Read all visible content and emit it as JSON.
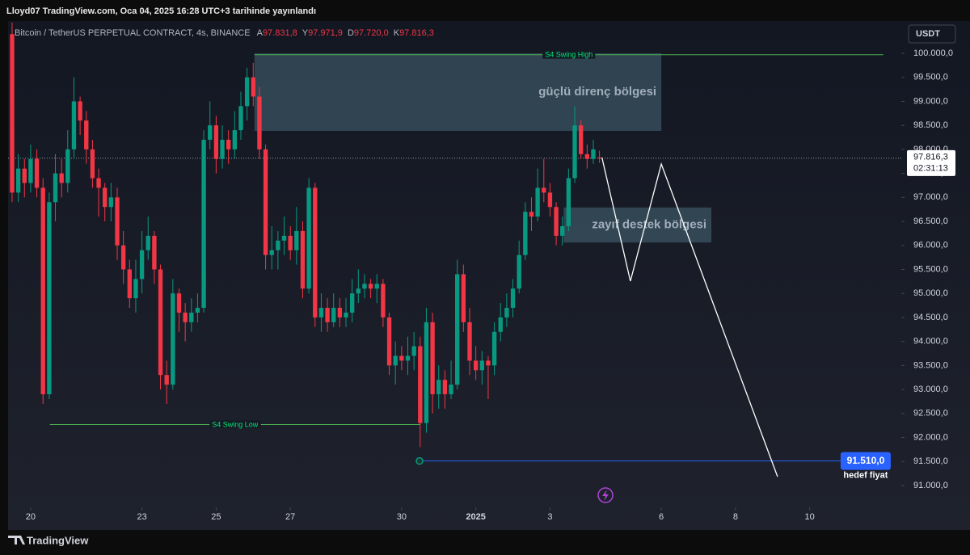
{
  "header": {
    "title": "Lloyd07 TradingView.com, Oca 04, 2025 16:28 UTC+3 tarihinde yayınlandı"
  },
  "chart_data": {
    "type": "candlestick",
    "symbol": "Bitcoin / TetherUS PERPETUAL CONTRACT, 4s, BINANCE",
    "ohlc_legend": [
      {
        "key": "A",
        "label": "97.831,8"
      },
      {
        "key": "Y",
        "label": "97.971,9"
      },
      {
        "key": "D",
        "label": "97.720,0"
      },
      {
        "key": "K",
        "label": "97.816,3"
      }
    ],
    "currency": "USDT",
    "up_color": "#089981",
    "down_color": "#f23645",
    "candles": [
      [
        100400,
        100700,
        96900,
        97100
      ],
      [
        97100,
        97900,
        96900,
        97600
      ],
      [
        97600,
        97800,
        97000,
        97300
      ],
      [
        97300,
        98100,
        97100,
        97800
      ],
      [
        97800,
        98000,
        97000,
        97200
      ],
      [
        97200,
        97400,
        92700,
        92900
      ],
      [
        92900,
        97100,
        92800,
        96900
      ],
      [
        96900,
        97900,
        96500,
        97500
      ],
      [
        97500,
        97800,
        97000,
        97300
      ],
      [
        97300,
        98400,
        97100,
        98000
      ],
      [
        98000,
        99500,
        97800,
        99000
      ],
      [
        99000,
        99100,
        98300,
        98600
      ],
      [
        98600,
        98800,
        97700,
        98000
      ],
      [
        98000,
        98200,
        97200,
        97400
      ],
      [
        97400,
        97600,
        96600,
        97200
      ],
      [
        97200,
        97300,
        96500,
        96800
      ],
      [
        96800,
        97300,
        96500,
        97000
      ],
      [
        97000,
        97200,
        95700,
        96000
      ],
      [
        96000,
        96300,
        95200,
        95500
      ],
      [
        95500,
        95700,
        94700,
        94900
      ],
      [
        94900,
        95700,
        94600,
        95300
      ],
      [
        95300,
        96300,
        95000,
        95900
      ],
      [
        95900,
        96600,
        95700,
        96200
      ],
      [
        96200,
        96300,
        95200,
        95500
      ],
      [
        95500,
        95600,
        93000,
        93300
      ],
      [
        93300,
        93600,
        92700,
        93100
      ],
      [
        93100,
        95300,
        93000,
        95000
      ],
      [
        95000,
        95100,
        94200,
        94600
      ],
      [
        94600,
        94800,
        94000,
        94400
      ],
      [
        94400,
        94900,
        94200,
        94600
      ],
      [
        94600,
        95000,
        94400,
        94700
      ],
      [
        94700,
        98400,
        94600,
        98200
      ],
      [
        98200,
        99000,
        98000,
        98500
      ],
      [
        98500,
        98700,
        97500,
        97800
      ],
      [
        97800,
        98500,
        97600,
        98200
      ],
      [
        98200,
        98400,
        97700,
        98000
      ],
      [
        98000,
        98800,
        97800,
        98400
      ],
      [
        98400,
        99200,
        98200,
        98900
      ],
      [
        98900,
        99700,
        98600,
        99500
      ],
      [
        99500,
        99800,
        98900,
        99100
      ],
      [
        99100,
        99300,
        97800,
        98000
      ],
      [
        98000,
        98100,
        95500,
        95800
      ],
      [
        95800,
        96400,
        95500,
        95900
      ],
      [
        95900,
        96300,
        95500,
        96100
      ],
      [
        96100,
        96600,
        95800,
        96200
      ],
      [
        96200,
        96400,
        95700,
        95900
      ],
      [
        95900,
        96800,
        95600,
        96300
      ],
      [
        96300,
        96500,
        94900,
        95100
      ],
      [
        95100,
        97400,
        95000,
        97200
      ],
      [
        97200,
        97300,
        94300,
        94500
      ],
      [
        94500,
        95000,
        94200,
        94700
      ],
      [
        94700,
        94900,
        94200,
        94400
      ],
      [
        94400,
        95000,
        94300,
        94700
      ],
      [
        94700,
        94900,
        94300,
        94500
      ],
      [
        94500,
        94900,
        94300,
        94600
      ],
      [
        94600,
        95300,
        94400,
        95000
      ],
      [
        95000,
        95500,
        94800,
        95100
      ],
      [
        95100,
        95400,
        94900,
        95200
      ],
      [
        95200,
        95300,
        94900,
        95100
      ],
      [
        95100,
        95400,
        94800,
        95200
      ],
      [
        95200,
        95300,
        94300,
        94500
      ],
      [
        94500,
        94600,
        93300,
        93500
      ],
      [
        93500,
        94000,
        93100,
        93700
      ],
      [
        93700,
        93900,
        93400,
        93600
      ],
      [
        93600,
        94100,
        93300,
        93700
      ],
      [
        93700,
        94200,
        93400,
        93900
      ],
      [
        93900,
        94100,
        91800,
        92300
      ],
      [
        92300,
        94700,
        92100,
        94400
      ],
      [
        94400,
        94600,
        92500,
        92900
      ],
      [
        92900,
        93500,
        92600,
        93200
      ],
      [
        93200,
        93400,
        92600,
        92900
      ],
      [
        92900,
        93600,
        92800,
        93100
      ],
      [
        93100,
        95700,
        93000,
        95400
      ],
      [
        95400,
        95600,
        94200,
        94400
      ],
      [
        94400,
        94700,
        93300,
        93600
      ],
      [
        93600,
        93900,
        93200,
        93400
      ],
      [
        93400,
        93800,
        93100,
        93600
      ],
      [
        93600,
        93700,
        92800,
        93500
      ],
      [
        93500,
        94400,
        93300,
        94200
      ],
      [
        94200,
        94800,
        94000,
        94500
      ],
      [
        94500,
        95000,
        94300,
        94700
      ],
      [
        94700,
        95300,
        94500,
        95100
      ],
      [
        95100,
        96100,
        95000,
        95800
      ],
      [
        95800,
        96900,
        95700,
        96700
      ],
      [
        96700,
        97000,
        96300,
        96600
      ],
      [
        96600,
        97600,
        96500,
        97200
      ],
      [
        97200,
        97800,
        96900,
        97100
      ],
      [
        97100,
        97300,
        96600,
        96800
      ],
      [
        96800,
        96900,
        96000,
        96200
      ],
      [
        96200,
        96600,
        96000,
        96400
      ],
      [
        96400,
        97600,
        96300,
        97400
      ],
      [
        97400,
        98900,
        97300,
        98500
      ],
      [
        98500,
        98600,
        97800,
        97900
      ],
      [
        97900,
        98100,
        97600,
        97800
      ],
      [
        97800,
        98200,
        97700,
        98000
      ],
      [
        97831.8,
        97971.9,
        97720,
        97816.3
      ]
    ],
    "xlim": [
      -0.65,
      141.2
    ],
    "xticks": [
      {
        "value": 3,
        "label": "20"
      },
      {
        "value": 21,
        "label": "23"
      },
      {
        "value": 33,
        "label": "25"
      },
      {
        "value": 45,
        "label": "27"
      },
      {
        "value": 63,
        "label": "30"
      },
      {
        "value": 75,
        "label": "2025"
      },
      {
        "value": 87,
        "label": "3"
      },
      {
        "value": 105,
        "label": "6"
      },
      {
        "value": 117,
        "label": "8"
      },
      {
        "value": 129,
        "label": "10"
      }
    ],
    "ylim": [
      90545,
      100606
    ],
    "yticks": [
      {
        "value": 100000,
        "label": "100.000,0"
      },
      {
        "value": 99500,
        "label": "99.500,0"
      },
      {
        "value": 99000,
        "label": "99.000,0"
      },
      {
        "value": 98500,
        "label": "98.500,0"
      },
      {
        "value": 98000,
        "label": "98.000,0"
      },
      {
        "value": 97500,
        "label": "97.500,0"
      },
      {
        "value": 97000,
        "label": "97.000,0"
      },
      {
        "value": 96500,
        "label": "96.500,0"
      },
      {
        "value": 96000,
        "label": "96.000,0"
      },
      {
        "value": 95500,
        "label": "95.500,0"
      },
      {
        "value": 95000,
        "label": "95.000,0"
      },
      {
        "value": 94500,
        "label": "94.500,0"
      },
      {
        "value": 94000,
        "label": "94.000,0"
      },
      {
        "value": 93500,
        "label": "93.500,0"
      },
      {
        "value": 93000,
        "label": "93.000,0"
      },
      {
        "value": 92500,
        "label": "92.500,0"
      },
      {
        "value": 92000,
        "label": "92.000,0"
      },
      {
        "value": 91500,
        "label": "91.500,0"
      },
      {
        "value": 91000,
        "label": "91.000,0"
      }
    ],
    "last_price": {
      "value": 97816.3,
      "label": "97.816,3",
      "countdown": "02:31:13"
    },
    "lines": [
      {
        "name": "S4 Swing High",
        "value": 99970,
        "x": [
          39.2,
          140.9
        ],
        "color": "#4caf50"
      },
      {
        "name": "S4 Swing Low",
        "value": 92270,
        "x": [
          6.1,
          66
        ],
        "color": "#4caf50"
      }
    ],
    "target": {
      "value": 91510,
      "label": "91.510,0",
      "note": "hedef fiyat",
      "x": [
        65.9,
        134
      ],
      "color": "#2962ff"
    },
    "zones": [
      {
        "label": "güçlü direnç bölgesi",
        "top": 100000,
        "bottom": 98385,
        "x": [
          39.2,
          105
        ]
      },
      {
        "label": "zayıf destek bölgesi",
        "top": 96790,
        "bottom": 96060,
        "x": [
          89.2,
          113.1
        ]
      }
    ],
    "projection": {
      "x": [
        95.4,
        100,
        105,
        123.8
      ],
      "values": [
        97830,
        95256,
        97695,
        91184
      ]
    }
  },
  "footer": {
    "brand": "TradingView"
  }
}
